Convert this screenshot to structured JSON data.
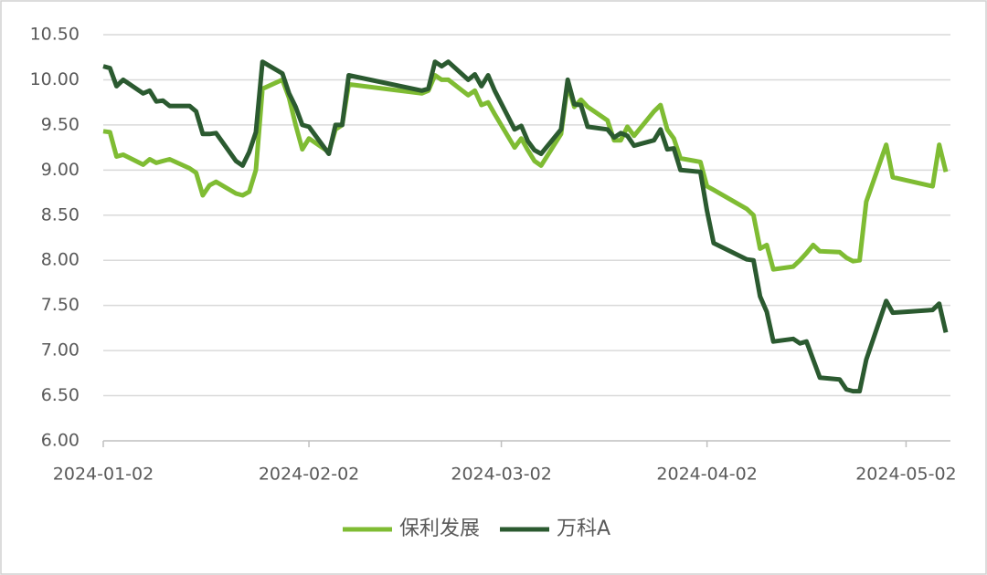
{
  "chart_data": {
    "type": "line",
    "x": [
      "2024-01-02",
      "2024-01-03",
      "2024-01-04",
      "2024-01-05",
      "2024-01-08",
      "2024-01-09",
      "2024-01-10",
      "2024-01-11",
      "2024-01-12",
      "2024-01-15",
      "2024-01-16",
      "2024-01-17",
      "2024-01-18",
      "2024-01-19",
      "2024-01-22",
      "2024-01-23",
      "2024-01-24",
      "2024-01-25",
      "2024-01-26",
      "2024-01-29",
      "2024-01-30",
      "2024-01-31",
      "2024-02-01",
      "2024-02-02",
      "2024-02-05",
      "2024-02-06",
      "2024-02-07",
      "2024-02-08",
      "2024-02-19",
      "2024-02-20",
      "2024-02-21",
      "2024-02-22",
      "2024-02-23",
      "2024-02-26",
      "2024-02-27",
      "2024-02-28",
      "2024-02-29",
      "2024-03-01",
      "2024-03-04",
      "2024-03-05",
      "2024-03-06",
      "2024-03-07",
      "2024-03-08",
      "2024-03-11",
      "2024-03-12",
      "2024-03-13",
      "2024-03-14",
      "2024-03-15",
      "2024-03-18",
      "2024-03-19",
      "2024-03-20",
      "2024-03-21",
      "2024-03-22",
      "2024-03-25",
      "2024-03-26",
      "2024-03-27",
      "2024-03-28",
      "2024-03-29",
      "2024-04-01",
      "2024-04-02",
      "2024-04-03",
      "2024-04-08",
      "2024-04-09",
      "2024-04-10",
      "2024-04-11",
      "2024-04-12",
      "2024-04-15",
      "2024-04-16",
      "2024-04-17",
      "2024-04-18",
      "2024-04-19",
      "2024-04-22",
      "2024-04-23",
      "2024-04-24",
      "2024-04-25",
      "2024-04-26",
      "2024-04-29",
      "2024-04-30",
      "2024-05-06",
      "2024-05-07",
      "2024-05-08"
    ],
    "series": [
      {
        "name": "保利发展",
        "color": "#7fbc33",
        "values": [
          9.43,
          9.42,
          9.15,
          9.17,
          9.06,
          9.12,
          9.08,
          9.1,
          9.12,
          9.02,
          8.97,
          8.72,
          8.83,
          8.87,
          8.74,
          8.72,
          8.76,
          9.0,
          9.9,
          10.0,
          9.8,
          9.5,
          9.23,
          9.35,
          9.2,
          9.45,
          9.5,
          9.95,
          9.85,
          9.88,
          10.05,
          10.0,
          10.0,
          9.83,
          9.88,
          9.72,
          9.75,
          9.62,
          9.25,
          9.35,
          9.22,
          9.1,
          9.05,
          9.4,
          9.95,
          9.7,
          9.78,
          9.7,
          9.55,
          9.33,
          9.33,
          9.48,
          9.38,
          9.65,
          9.72,
          9.45,
          9.35,
          9.13,
          9.09,
          8.82,
          8.78,
          8.57,
          8.5,
          8.13,
          8.17,
          7.9,
          7.93,
          8.0,
          8.08,
          8.17,
          8.1,
          8.09,
          8.03,
          7.99,
          8.0,
          8.65,
          9.28,
          8.92,
          8.82,
          9.28,
          8.98
        ]
      },
      {
        "name": "万科A",
        "color": "#2b5a30",
        "values": [
          10.15,
          10.13,
          9.93,
          10.0,
          9.85,
          9.88,
          9.76,
          9.77,
          9.71,
          9.71,
          9.65,
          9.4,
          9.4,
          9.41,
          9.1,
          9.05,
          9.2,
          9.42,
          10.2,
          10.07,
          9.85,
          9.7,
          9.5,
          9.48,
          9.18,
          9.5,
          9.5,
          10.05,
          9.88,
          9.9,
          10.2,
          10.15,
          10.2,
          10.0,
          10.06,
          9.93,
          10.05,
          9.88,
          9.45,
          9.49,
          9.32,
          9.22,
          9.18,
          9.45,
          10.0,
          9.73,
          9.72,
          9.48,
          9.45,
          9.36,
          9.41,
          9.38,
          9.27,
          9.33,
          9.45,
          9.23,
          9.24,
          9.0,
          8.98,
          8.55,
          8.19,
          8.01,
          8.0,
          7.6,
          7.43,
          7.1,
          7.13,
          7.08,
          7.1,
          6.9,
          6.7,
          6.68,
          6.57,
          6.55,
          6.55,
          6.9,
          7.55,
          7.42,
          7.45,
          7.52,
          7.2
        ]
      }
    ],
    "xlim": [
      "2024-01-02",
      "2024-05-08"
    ],
    "xticks": [
      "2024-01-02",
      "2024-02-02",
      "2024-03-02",
      "2024-04-02",
      "2024-05-02"
    ],
    "ylim": [
      6.0,
      10.5
    ],
    "yticks": [
      {
        "value": 6.0,
        "label": "6.00"
      },
      {
        "value": 6.5,
        "label": "6.50"
      },
      {
        "value": 7.0,
        "label": "7.00"
      },
      {
        "value": 7.5,
        "label": "7.50"
      },
      {
        "value": 8.0,
        "label": "8.00"
      },
      {
        "value": 8.5,
        "label": "8.50"
      },
      {
        "value": 9.0,
        "label": "9.00"
      },
      {
        "value": 9.5,
        "label": "9.50"
      },
      {
        "value": 10.0,
        "label": "10.00"
      },
      {
        "value": 10.5,
        "label": "10.50"
      }
    ],
    "grid": true,
    "legend": "bottom"
  }
}
